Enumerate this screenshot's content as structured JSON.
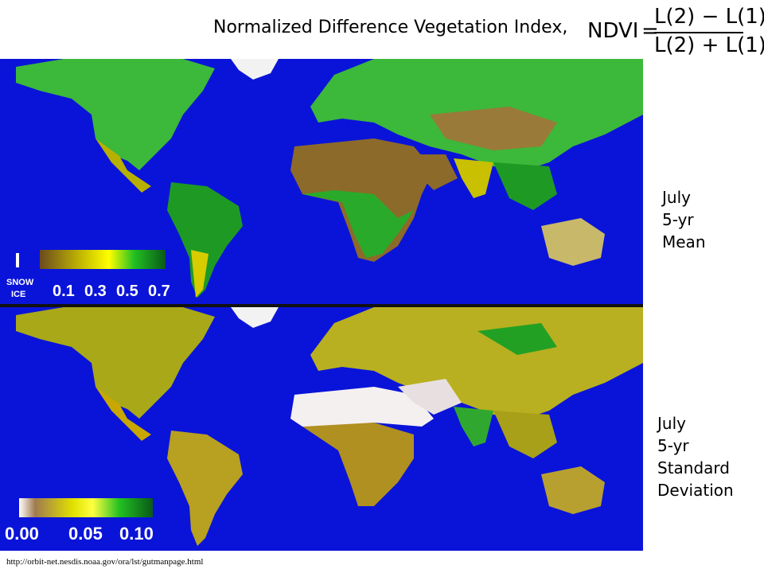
{
  "title": "Normalized Difference Vegetation Index,",
  "formula": {
    "lhs": "NDVI",
    "equals": "=",
    "numerator": "L(2) − L(1)",
    "denominator": "L(2) + L(1)"
  },
  "panels": {
    "top": {
      "label_lines": [
        "July",
        "5-yr",
        "Mean"
      ]
    },
    "bottom": {
      "label_lines": [
        "July",
        "5-yr",
        "Standard",
        "Deviation"
      ]
    }
  },
  "legend_top": {
    "snow_ice_line1": "SNOW",
    "snow_ice_line2": "ICE",
    "ticks": [
      "0.1",
      "0.3",
      "0.5",
      "0.7"
    ]
  },
  "legend_bottom": {
    "ticks": [
      "0.00",
      "0.05",
      "0.10"
    ]
  },
  "colors": {
    "ocean": "#0a14d8",
    "desert": "#8c6a2a",
    "sparse": "#e6e600",
    "vegetation": "#22b022",
    "dense": "#0a6a1a",
    "low_deviation": "#ffffff"
  },
  "source_url": "http://orbit-net.nesdis.noaa.gov/ora/lst/gutmanpage.html"
}
